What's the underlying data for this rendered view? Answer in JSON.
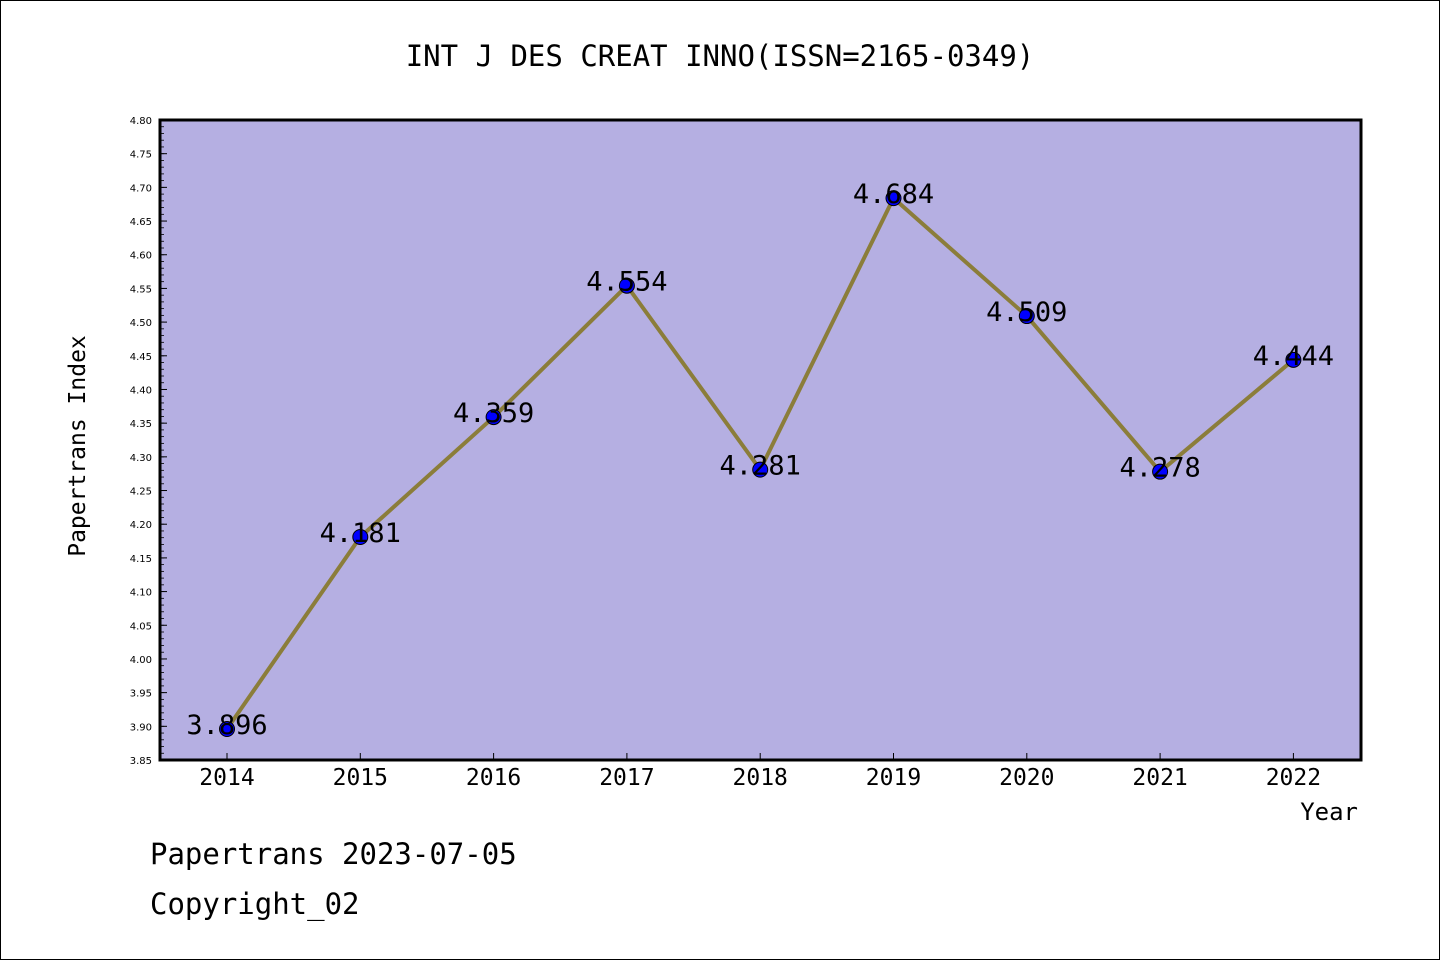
{
  "chart_data": {
    "type": "line",
    "title": "INT J DES CREAT INNO(ISSN=2165-0349)",
    "xlabel": "Year",
    "ylabel": "Papertrans Index",
    "categories": [
      "2014",
      "2015",
      "2016",
      "2017",
      "2018",
      "2019",
      "2020",
      "2021",
      "2022"
    ],
    "values": [
      3.896,
      4.181,
      4.359,
      4.554,
      4.281,
      4.684,
      4.509,
      4.278,
      4.444
    ],
    "data_labels": [
      "3.896",
      "4.181",
      "4.359",
      "4.554",
      "4.281",
      "4.684",
      "4.509",
      "4.278",
      "4.444"
    ],
    "ylim": [
      3.85,
      4.8
    ],
    "y_ticks": [
      "3.85",
      "3.90",
      "3.95",
      "4.00",
      "4.05",
      "4.10",
      "4.15",
      "4.20",
      "4.25",
      "4.30",
      "4.35",
      "4.40",
      "4.45",
      "4.50",
      "4.55",
      "4.60",
      "4.65",
      "4.70",
      "4.75",
      "4.80"
    ],
    "grid": false,
    "legend": "none",
    "colors": {
      "plot_background": "#b5afe2",
      "line": "#8b7d3a",
      "marker": "#0000ff",
      "axis": "#000000"
    }
  },
  "footer": {
    "line1": "Papertrans 2023-07-05",
    "line2": "Copyright_02"
  }
}
